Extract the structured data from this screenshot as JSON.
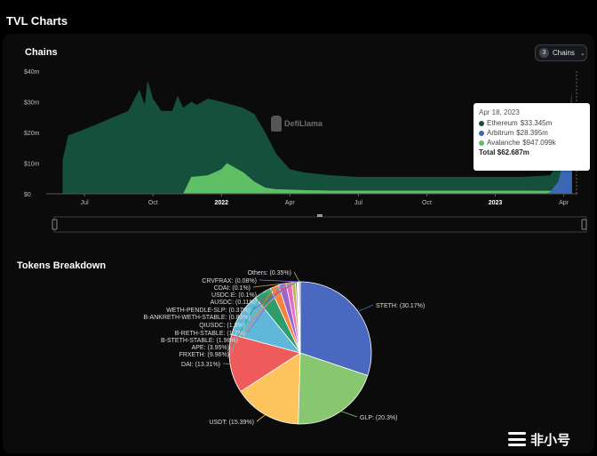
{
  "page_title": "TVL Charts",
  "chains_chart": {
    "title": "Chains",
    "selector": {
      "count": "3",
      "label": "Chains"
    },
    "watermark": "DefiLlama",
    "colors": {
      "ethereum": "#14503b",
      "arbitrum": "#3c67b4",
      "avalanche": "#5fbf64"
    }
  },
  "tokens_title": "Tokens Breakdown",
  "tooltip": {
    "date": "Apr 18, 2023",
    "rows": [
      {
        "name": "Ethereum",
        "value": "$33.345m",
        "color": "#14503b"
      },
      {
        "name": "Arbitrum",
        "value": "$28.395m",
        "color": "#3c67b4"
      },
      {
        "name": "Avalanche",
        "value": "$947.099k",
        "color": "#5fbf64"
      }
    ],
    "total_label": "Total",
    "total_value": "$62.687m"
  },
  "chart_data": [
    {
      "type": "area",
      "title": "Chains",
      "y_ticks": [
        "$0",
        "$10m",
        "$20m",
        "$30m",
        "$40m"
      ],
      "ylim": [
        0,
        40
      ],
      "y_unit": "m",
      "x_ticks": [
        "Jul",
        "Oct",
        "2022",
        "Apr",
        "Jul",
        "Oct",
        "2023",
        "Apr"
      ],
      "legend": "none",
      "grid": false,
      "series": [
        {
          "name": "Ethereum",
          "color": "#14503b",
          "points": [
            [
              2021.42,
              11
            ],
            [
              2021.44,
              19
            ],
            [
              2021.5,
              21
            ],
            [
              2021.58,
              24
            ],
            [
              2021.66,
              27
            ],
            [
              2021.7,
              34
            ],
            [
              2021.72,
              29
            ],
            [
              2021.73,
              37
            ],
            [
              2021.75,
              31
            ],
            [
              2021.78,
              27
            ],
            [
              2021.82,
              27
            ],
            [
              2021.84,
              32
            ],
            [
              2021.86,
              28
            ],
            [
              2021.89,
              30
            ],
            [
              2021.91,
              29
            ],
            [
              2021.95,
              31
            ],
            [
              2022.0,
              30
            ],
            [
              2022.08,
              28
            ],
            [
              2022.12,
              26
            ],
            [
              2022.16,
              20
            ],
            [
              2022.2,
              13
            ],
            [
              2022.25,
              8
            ],
            [
              2022.3,
              7
            ],
            [
              2022.4,
              6
            ],
            [
              2022.5,
              5.5
            ],
            [
              2022.6,
              5.5
            ],
            [
              2022.7,
              5.5
            ],
            [
              2022.8,
              5.5
            ],
            [
              2022.9,
              5.5
            ],
            [
              2023.0,
              5.5
            ],
            [
              2023.1,
              5.5
            ],
            [
              2023.2,
              6
            ],
            [
              2023.23,
              10
            ],
            [
              2023.26,
              20
            ],
            [
              2023.28,
              33.3
            ]
          ]
        },
        {
          "name": "Avalanche",
          "color": "#5fbf64",
          "points": [
            [
              2021.86,
              0
            ],
            [
              2021.89,
              5.5
            ],
            [
              2021.95,
              6
            ],
            [
              2022.0,
              8
            ],
            [
              2022.02,
              10
            ],
            [
              2022.04,
              9
            ],
            [
              2022.08,
              7
            ],
            [
              2022.12,
              4
            ],
            [
              2022.16,
              2
            ],
            [
              2022.2,
              1.5
            ],
            [
              2022.3,
              1.2
            ],
            [
              2022.4,
              1
            ],
            [
              2022.5,
              1
            ],
            [
              2022.7,
              1
            ],
            [
              2022.9,
              1
            ],
            [
              2023.1,
              1
            ],
            [
              2023.28,
              0.95
            ]
          ]
        },
        {
          "name": "Arbitrum",
          "color": "#3c67b4",
          "points": [
            [
              2023.18,
              0
            ],
            [
              2023.2,
              0.5
            ],
            [
              2023.23,
              4
            ],
            [
              2023.26,
              15
            ],
            [
              2023.28,
              28.4
            ]
          ]
        }
      ]
    },
    {
      "type": "pie",
      "title": "Tokens Breakdown",
      "slices": [
        {
          "label": "STETH: (30.17%)",
          "value": 30.17,
          "color": "#4a68c0"
        },
        {
          "label": "GLP: (20.3%)",
          "value": 20.3,
          "color": "#86c770"
        },
        {
          "label": "USDT: (15.39%)",
          "value": 15.39,
          "color": "#fdc35c"
        },
        {
          "label": "DAI: (13.31%)",
          "value": 13.31,
          "color": "#ef5b5b"
        },
        {
          "label": "FRXETH: (9.96%)",
          "value": 9.96,
          "color": "#5fb8d9"
        },
        {
          "label": "APE: (3.95%)",
          "value": 3.95,
          "color": "#2f9d6b"
        },
        {
          "label": "B-STETH-STABLE: (1.98%)",
          "value": 1.98,
          "color": "#f5833f"
        },
        {
          "label": "B-RETH-STABLE: (1.7%)",
          "value": 1.7,
          "color": "#9d63c9"
        },
        {
          "label": "QIUSDC: (1.3%)",
          "value": 1.3,
          "color": "#e56bc9"
        },
        {
          "label": "B-ANKRETH-WETH-STABLE: (0.83%)",
          "value": 0.83,
          "color": "#c0b24a"
        },
        {
          "label": "WETH-PENDLE-SLP: (0.37%)",
          "value": 0.37,
          "color": "#7a5ec0"
        },
        {
          "label": "AUSDC: (0.11%)",
          "value": 0.11,
          "color": "#e05050"
        },
        {
          "label": "USDC.E: (0.1%)",
          "value": 0.1,
          "color": "#50c0a0"
        },
        {
          "label": "CDAI: (0.1%)",
          "value": 0.1,
          "color": "#e0a050"
        },
        {
          "label": "CRVFRAX: (0.08%)",
          "value": 0.08,
          "color": "#8080ff"
        },
        {
          "label": "Others: (0.35%)",
          "value": 0.35,
          "color": "#a0a0a0"
        }
      ]
    }
  ]
}
